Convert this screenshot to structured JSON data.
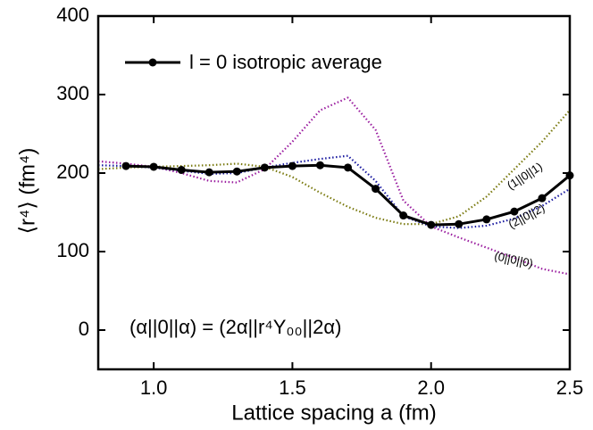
{
  "chart_data": {
    "type": "line",
    "x": [
      0.8,
      0.9,
      1.0,
      1.1,
      1.2,
      1.3,
      1.4,
      1.5,
      1.6,
      1.7,
      1.8,
      1.9,
      2.0,
      2.1,
      2.2,
      2.3,
      2.4,
      2.5
    ],
    "series": [
      {
        "name": "(0||0||0)",
        "color": "#9b1fa0",
        "style": "dotted",
        "values": [
          215,
          212,
          208,
          200,
          190,
          188,
          205,
          240,
          280,
          296,
          255,
          165,
          132,
          118,
          105,
          92,
          78,
          71
        ]
      },
      {
        "name": "(1||0||1)",
        "color": "#7a7a10",
        "style": "dotted",
        "values": [
          205,
          207,
          208,
          209,
          210,
          212,
          208,
          195,
          175,
          157,
          143,
          135,
          135,
          145,
          170,
          205,
          240,
          280
        ]
      },
      {
        "name": "(2||0||2)",
        "color": "#1a1aa0",
        "style": "dotted",
        "values": [
          210,
          209,
          207,
          203,
          199,
          200,
          207,
          213,
          218,
          222,
          190,
          145,
          132,
          130,
          133,
          142,
          158,
          180
        ]
      },
      {
        "name": "l = 0 isotropic average",
        "color": "#000000",
        "style": "solid",
        "markers": true,
        "values": [
          null,
          209,
          208,
          204,
          201,
          202,
          207,
          209,
          210,
          207,
          180,
          146,
          134,
          135,
          141,
          151,
          168,
          197
        ]
      }
    ],
    "annotation": "(α||0||α) = (2α||r⁴Y₀₀||2α)",
    "xlabel": "Lattice spacing a (fm)",
    "ylabel": "⟨r⁴⟩ (fm⁴)",
    "xlim": [
      0.8,
      2.5
    ],
    "ylim": [
      -50,
      400
    ],
    "xticks": [
      {
        "value": 1.0,
        "label": "1.0"
      },
      1.5,
      {
        "value": 2.0,
        "label": "2.0"
      },
      2.5
    ],
    "yticks": [
      0,
      100,
      200,
      300,
      400
    ],
    "legend": "upper left"
  }
}
